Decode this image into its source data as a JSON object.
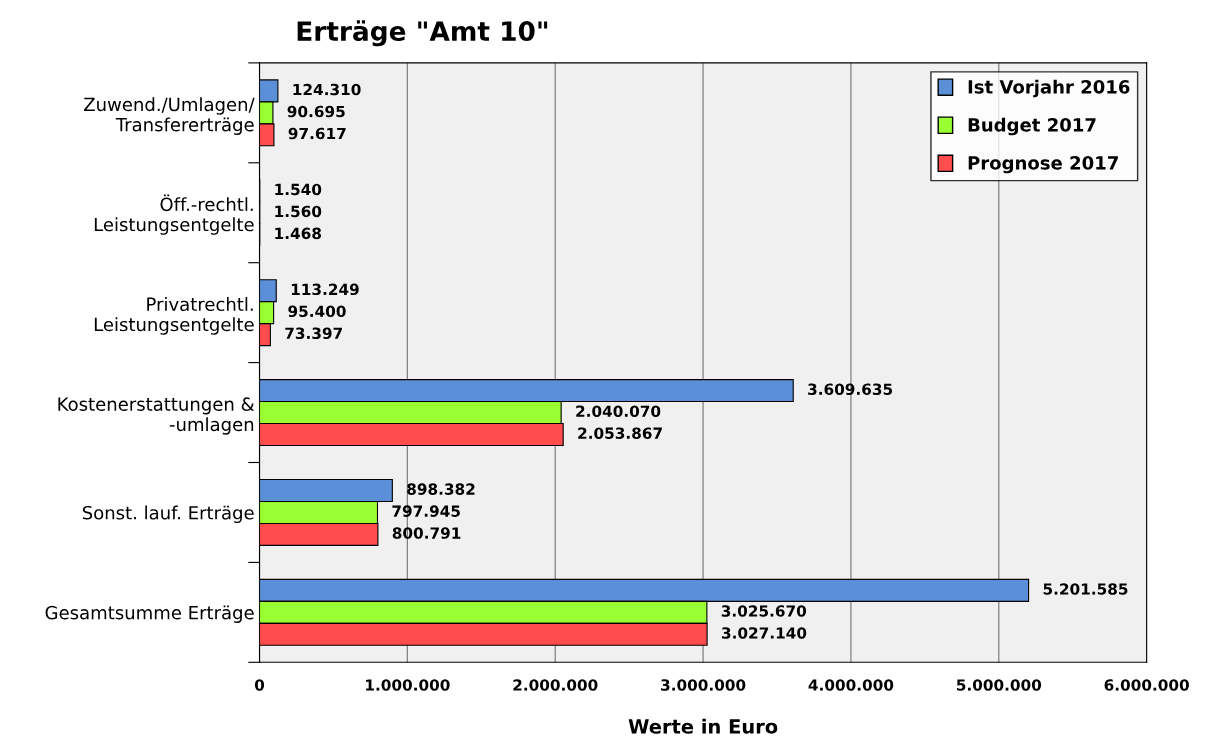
{
  "chart_data": {
    "type": "bar",
    "orientation": "horizontal",
    "title": "Erträge \"Amt 10\"",
    "xlabel": "Werte in Euro",
    "categories": [
      "Zuwend./Umlagen/\nTransfererträge",
      "Öff.-rechtl.\nLeistungsentgelte",
      "Privatrechtl.\nLeistungsentgelte",
      "Kostenerstattungen &\n-umlagen",
      "Sonst. lauf. Erträge",
      "Gesamtsumme Erträge"
    ],
    "series": [
      {
        "name": "Ist Vorjahr 2016",
        "color": "#5b8fd8",
        "values": [
          124310,
          1540,
          113249,
          3609635,
          898382,
          5201585
        ],
        "value_labels": [
          "124.310",
          "1.540",
          "113.249",
          "3.609.635",
          "898.382",
          "5.201.585"
        ]
      },
      {
        "name": "Budget 2017",
        "color": "#99ff33",
        "values": [
          90695,
          1560,
          95400,
          2040070,
          797945,
          3025670
        ],
        "value_labels": [
          "90.695",
          "1.560",
          "95.400",
          "2.040.070",
          "797.945",
          "3.025.670"
        ]
      },
      {
        "name": "Prognose 2017",
        "color": "#ff4d4d",
        "values": [
          97617,
          1468,
          73397,
          2053867,
          800791,
          3027140
        ],
        "value_labels": [
          "97.617",
          "1.468",
          "73.397",
          "2.053.867",
          "800.791",
          "3.027.140"
        ]
      }
    ],
    "xlim": [
      0,
      6000000
    ],
    "xticks": [
      0,
      {
        "value": 1000000,
        "label": "1.000.000"
      },
      {
        "value": 2000000,
        "label": "2.000.000"
      },
      {
        "value": 3000000,
        "label": "3.000.000"
      },
      {
        "value": 4000000,
        "label": "4.000.000"
      },
      {
        "value": 5000000,
        "label": "5.000.000"
      },
      {
        "value": 6000000,
        "label": "6.000.000"
      }
    ],
    "grid": "x",
    "legend": "top right"
  }
}
